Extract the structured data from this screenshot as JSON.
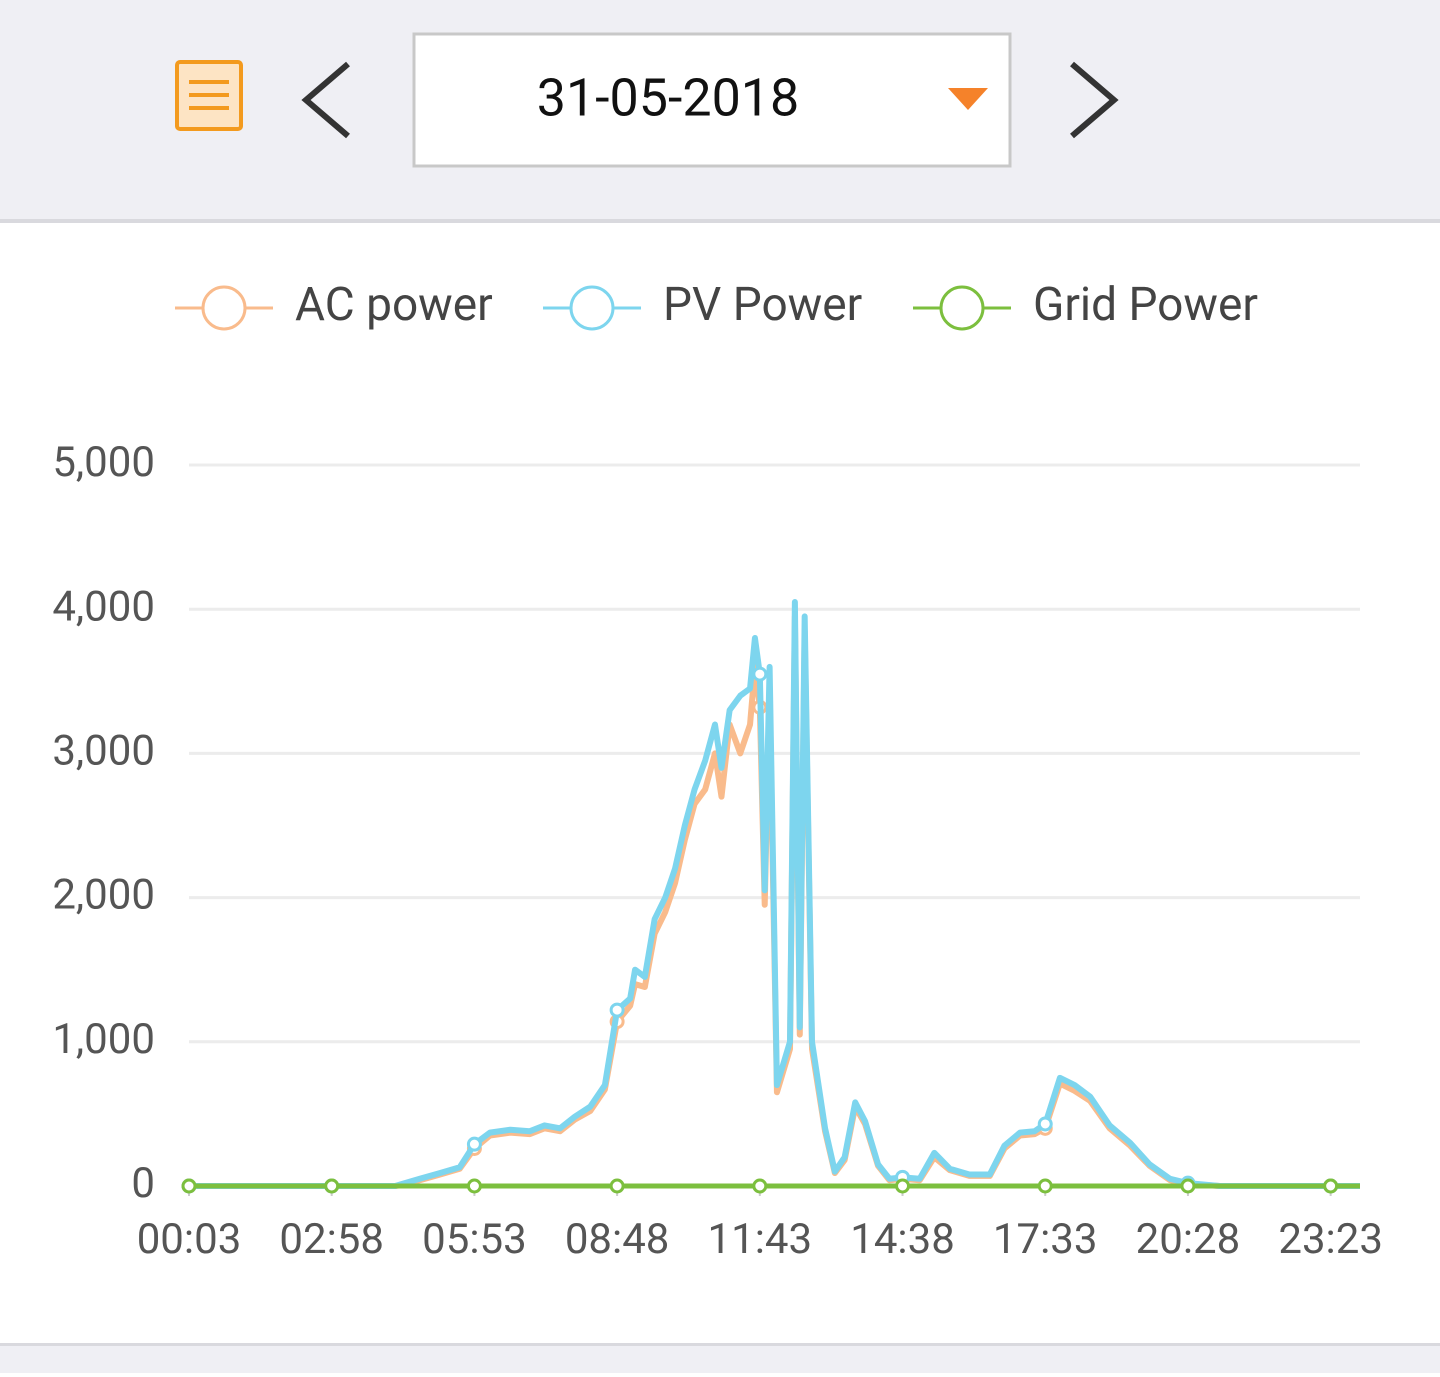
{
  "header": {
    "date": "31-05-2018"
  },
  "chart_data": {
    "type": "line",
    "legend": "top",
    "grid": true,
    "x": [
      3,
      178,
      256,
      262,
      286,
      311,
      335,
      353,
      372,
      397,
      421,
      439,
      458,
      476,
      495,
      513,
      528,
      544,
      550,
      562,
      574,
      587,
      599,
      611,
      623,
      636,
      648,
      656,
      666,
      679,
      691,
      697,
      703,
      709,
      715,
      724,
      740,
      746,
      752,
      758,
      767,
      783,
      795,
      807,
      820,
      832,
      848,
      862,
      878,
      899,
      917,
      936,
      960,
      985,
      1003,
      1022,
      1040,
      1053,
      1071,
      1089,
      1108,
      1132,
      1157,
      1181,
      1206,
      1228,
      1267,
      1403,
      1439
    ],
    "series": [
      {
        "name": "AC power",
        "color": "#f9bb8c",
        "values": [
          0,
          0,
          0,
          5,
          40,
          80,
          120,
          260,
          350,
          370,
          360,
          400,
          380,
          460,
          520,
          670,
          1140,
          1250,
          1400,
          1380,
          1750,
          1900,
          2100,
          2400,
          2650,
          2750,
          3000,
          2700,
          3200,
          3000,
          3200,
          3600,
          3320,
          1950,
          3400,
          650,
          950,
          3950,
          1050,
          3850,
          950,
          380,
          90,
          180,
          550,
          430,
          140,
          40,
          50,
          40,
          200,
          110,
          70,
          70,
          260,
          350,
          360,
          400,
          710,
          660,
          590,
          400,
          280,
          140,
          40,
          15,
          0,
          0,
          0
        ]
      },
      {
        "name": "PV Power",
        "color": "#7dd5ee",
        "values": [
          0,
          0,
          0,
          10,
          50,
          90,
          130,
          290,
          370,
          390,
          380,
          420,
          400,
          480,
          550,
          700,
          1220,
          1300,
          1500,
          1450,
          1850,
          2000,
          2200,
          2500,
          2750,
          2950,
          3200,
          2900,
          3300,
          3400,
          3450,
          3800,
          3550,
          2050,
          3600,
          700,
          1000,
          4050,
          1100,
          3950,
          1000,
          400,
          100,
          200,
          580,
          450,
          150,
          50,
          60,
          50,
          230,
          120,
          80,
          80,
          280,
          370,
          380,
          430,
          750,
          700,
          620,
          420,
          300,
          150,
          50,
          20,
          0,
          0,
          0
        ]
      },
      {
        "name": "Grid Power",
        "color": "#7cbf3e",
        "values": [
          0,
          0,
          0,
          0,
          0,
          0,
          0,
          0,
          0,
          0,
          0,
          0,
          0,
          0,
          0,
          0,
          0,
          0,
          0,
          0,
          0,
          0,
          0,
          0,
          0,
          0,
          0,
          0,
          0,
          0,
          0,
          0,
          0,
          0,
          0,
          0,
          0,
          0,
          0,
          0,
          0,
          0,
          0,
          0,
          0,
          0,
          0,
          0,
          0,
          0,
          0,
          0,
          0,
          0,
          0,
          0,
          0,
          0,
          0,
          0,
          0,
          0,
          0,
          0,
          0,
          0,
          0,
          0,
          0
        ]
      }
    ],
    "xlim": [
      3,
      1439
    ],
    "xticks": [
      {
        "value": 3,
        "label": "00:03"
      },
      {
        "value": 178,
        "label": "02:58"
      },
      {
        "value": 353,
        "label": "05:53"
      },
      {
        "value": 528,
        "label": "08:48"
      },
      {
        "value": 703,
        "label": "11:43"
      },
      {
        "value": 878,
        "label": "14:38"
      },
      {
        "value": 1053,
        "label": "17:33"
      },
      {
        "value": 1228,
        "label": "20:28"
      },
      {
        "value": 1403,
        "label": "23:23"
      }
    ],
    "ylim": [
      0,
      5000
    ],
    "yticks": [
      0,
      {
        "value": 1000,
        "label": "1,000"
      },
      {
        "value": 2000,
        "label": "2,000"
      },
      {
        "value": 3000,
        "label": "3,000"
      },
      {
        "value": 4000,
        "label": "4,000"
      },
      {
        "value": 5000,
        "label": "5,000"
      }
    ]
  }
}
